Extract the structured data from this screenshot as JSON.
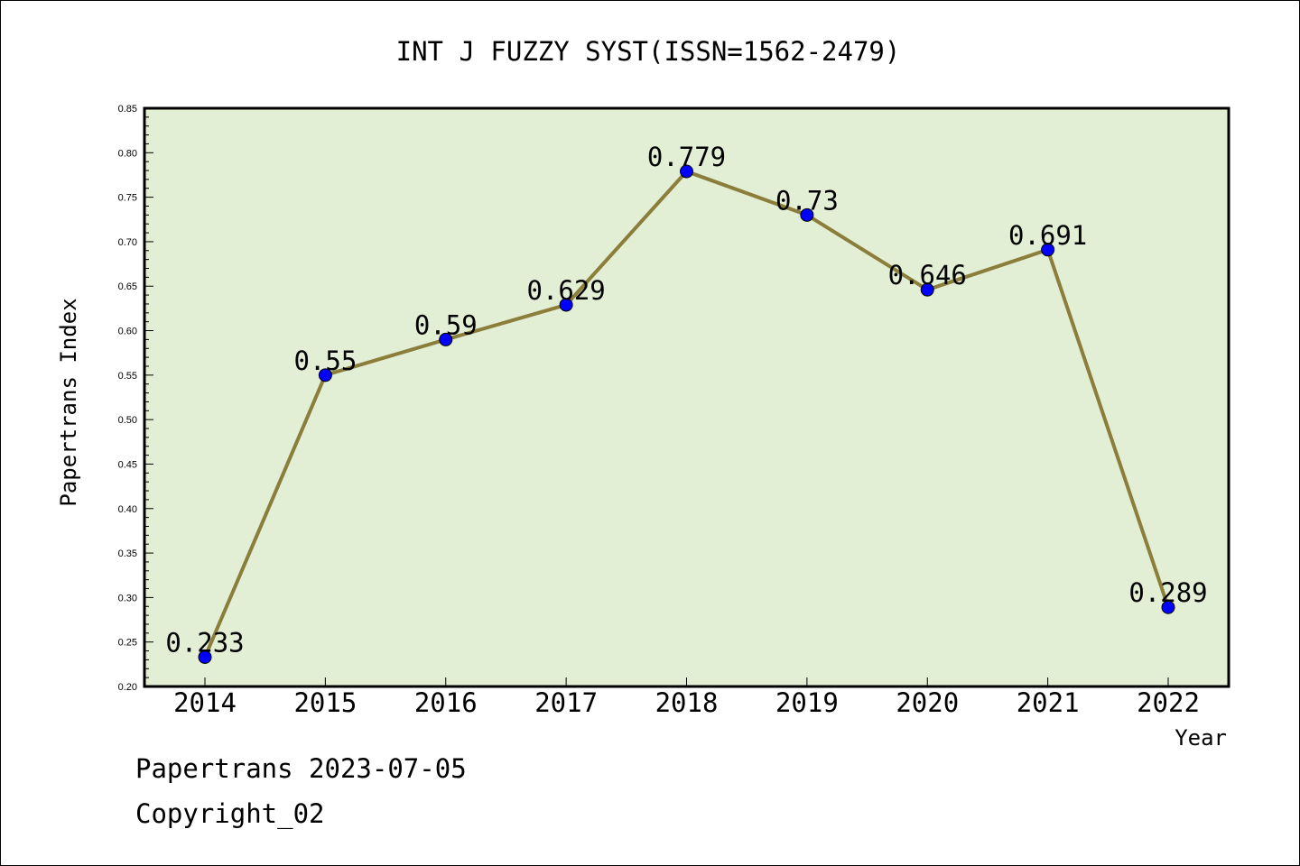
{
  "chart_data": {
    "type": "line",
    "title": "INT J FUZZY SYST(ISSN=1562-2479)",
    "xlabel": "Year",
    "ylabel": "Papertrans Index",
    "categories": [
      "2014",
      "2015",
      "2016",
      "2017",
      "2018",
      "2019",
      "2020",
      "2021",
      "2022"
    ],
    "values": [
      0.233,
      0.55,
      0.59,
      0.629,
      0.779,
      0.73,
      0.646,
      0.691,
      0.289
    ],
    "data_labels": [
      "0.233",
      "0.55",
      "0.59",
      "0.629",
      "0.779",
      "0.73",
      "0.646",
      "0.691",
      "0.289"
    ],
    "ylim": [
      0.2,
      0.85
    ],
    "yticks": [
      "0.20",
      "0.25",
      "0.30",
      "0.35",
      "0.40",
      "0.45",
      "0.50",
      "0.55",
      "0.60",
      "0.65",
      "0.70",
      "0.75",
      "0.80",
      "0.85"
    ],
    "grid": false,
    "colors": {
      "plot_background": "#e2efd5",
      "line": "#8b7d3a",
      "marker": "#0000ff"
    }
  },
  "footer": {
    "source": "Papertrans 2023-07-05",
    "copyright": "Copyright_02"
  }
}
